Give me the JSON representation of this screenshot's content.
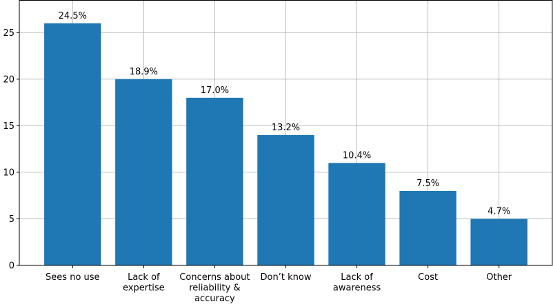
{
  "chart_data": {
    "type": "bar",
    "categories": [
      [
        "Sees no use"
      ],
      [
        "Lack of",
        "expertise"
      ],
      [
        "Concerns about",
        "reliability &",
        "accuracy"
      ],
      [
        "Don’t know"
      ],
      [
        "Lack of",
        "awareness"
      ],
      [
        "Cost"
      ],
      [
        "Other"
      ]
    ],
    "values": [
      26,
      20,
      18,
      14,
      11,
      8,
      5
    ],
    "data_labels": [
      "24.5%",
      "18.9%",
      "17.0%",
      "13.2%",
      "10.4%",
      "7.5%",
      "4.7%"
    ],
    "title": "",
    "xlabel": "",
    "ylabel": "",
    "ylim": [
      0,
      28.5
    ],
    "yticks": [
      0,
      5,
      10,
      15,
      20,
      25
    ],
    "grid": true,
    "colors": {
      "bar": "#1f77b4",
      "grid": "#b0b0b0",
      "axis": "#000000"
    }
  }
}
